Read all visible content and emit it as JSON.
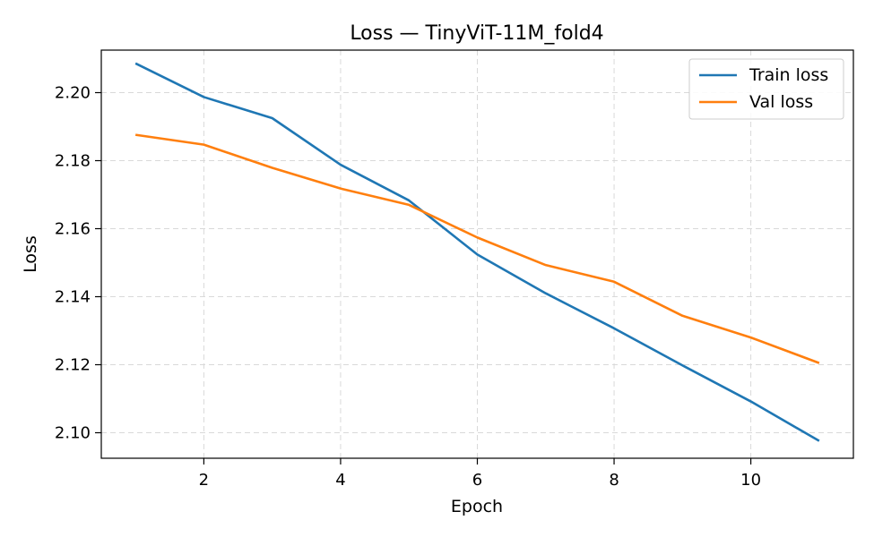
{
  "chart_data": {
    "type": "line",
    "title": "Loss — TinyViT-11M_fold4",
    "xlabel": "Epoch",
    "ylabel": "Loss",
    "x": [
      1,
      2,
      3,
      4,
      5,
      6,
      7,
      8,
      9,
      10,
      11
    ],
    "xlim": [
      0.5,
      11.5
    ],
    "ylim": [
      2.0925,
      2.2125
    ],
    "xticks": [
      2,
      4,
      6,
      8,
      10
    ],
    "xtick_labels": [
      "2",
      "4",
      "6",
      "8",
      "10"
    ],
    "yticks": [
      2.1,
      2.12,
      2.14,
      2.16,
      2.18,
      2.2
    ],
    "ytick_labels": [
      "2.10",
      "2.12",
      "2.14",
      "2.16",
      "2.18",
      "2.20"
    ],
    "grid": true,
    "legend_position": "top-right",
    "series": [
      {
        "name": "Train loss",
        "color": "#1f77b4",
        "values": [
          2.2086,
          2.1987,
          2.1925,
          2.1788,
          2.1683,
          2.1524,
          2.141,
          2.1307,
          2.1198,
          2.1092,
          2.0976
        ]
      },
      {
        "name": "Val loss",
        "color": "#ff7f0e",
        "values": [
          2.1876,
          2.1847,
          2.1779,
          2.1718,
          2.167,
          2.1574,
          2.1493,
          2.1444,
          2.1344,
          2.128,
          2.1205
        ]
      }
    ]
  }
}
